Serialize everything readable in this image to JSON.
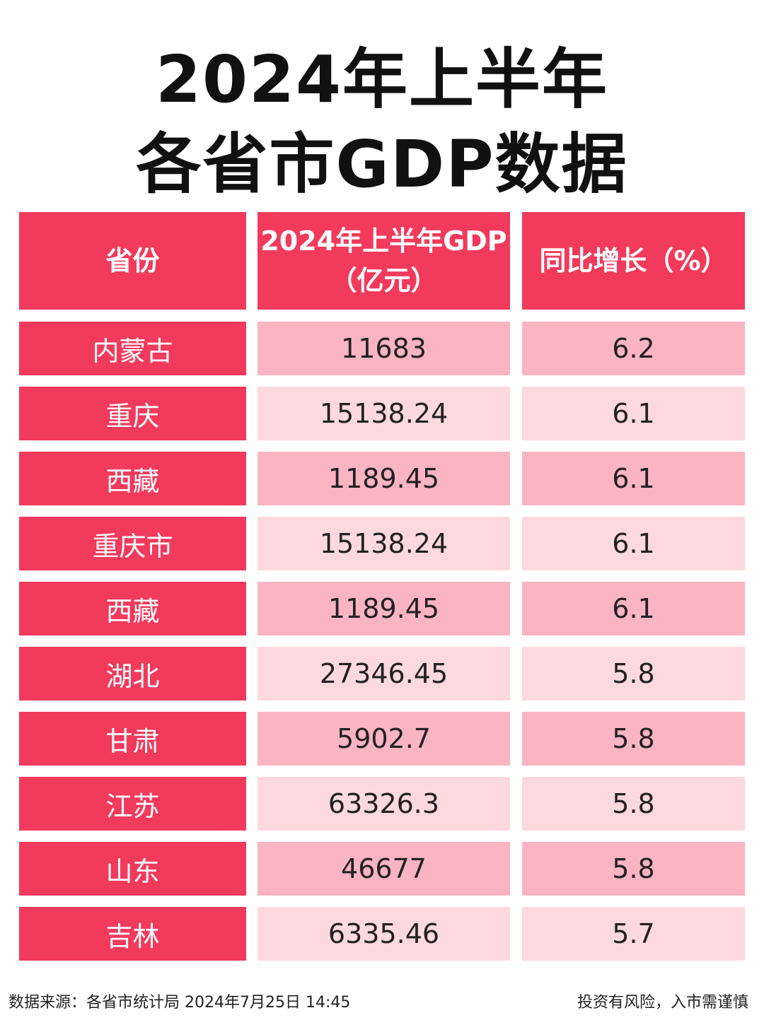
{
  "header": {
    "title_lines": [
      "2024年上半年",
      "各省市GDP数据"
    ]
  },
  "table": {
    "columns": [
      [
        "省份"
      ],
      [
        "2024年上半年GDP",
        "（亿元）"
      ],
      [
        "同比增长（%）"
      ]
    ],
    "rows": [
      [
        "内蒙古",
        "11683",
        "6.2"
      ],
      [
        "重庆",
        "15138.24",
        "6.1"
      ],
      [
        "西藏",
        "1189.45",
        "6.1"
      ],
      [
        "重庆市",
        "15138.24",
        "6.1"
      ],
      [
        "西藏",
        "1189.45",
        "6.1"
      ],
      [
        "湖北",
        "27346.45",
        "5.8"
      ],
      [
        "甘肃",
        "5902.7",
        "5.8"
      ],
      [
        "江苏",
        "63326.3",
        "5.8"
      ],
      [
        "山东",
        "46677",
        "5.8"
      ],
      [
        "吉林",
        "6335.46",
        "5.7"
      ]
    ]
  },
  "footer": {
    "source": "数据来源：各省市统计局 2024年7月25日 14:45",
    "disclaimer": "投资有风险，入市需谨慎"
  }
}
